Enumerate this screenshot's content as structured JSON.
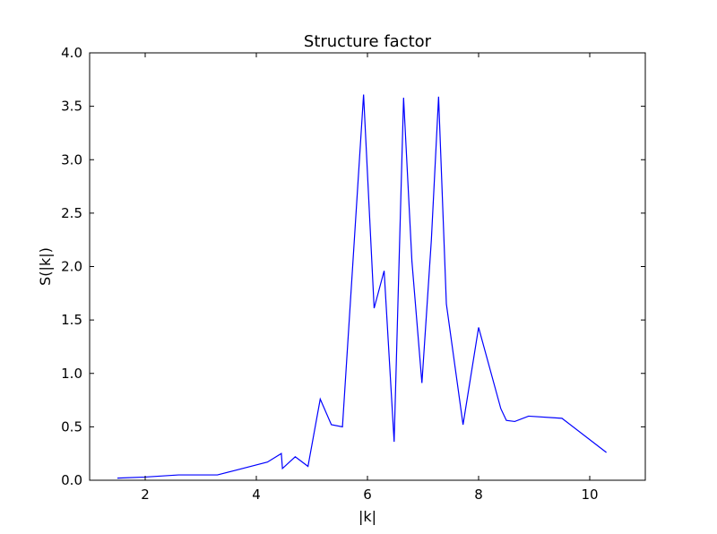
{
  "chart_data": {
    "type": "line",
    "title": "Structure factor",
    "xlabel": "|k|",
    "ylabel": "S(|k|)",
    "xlim": [
      1,
      11
    ],
    "ylim": [
      0.0,
      4.0
    ],
    "xticks": [
      2,
      4,
      6,
      8,
      10
    ],
    "xtick_labels": [
      "2",
      "4",
      "6",
      "8",
      "10"
    ],
    "yticks": [
      0.0,
      0.5,
      1.0,
      1.5,
      2.0,
      2.5,
      3.0,
      3.5,
      4.0
    ],
    "ytick_labels": [
      "0.0",
      "0.5",
      "1.0",
      "1.5",
      "2.0",
      "2.5",
      "3.0",
      "3.5",
      "4.0"
    ],
    "grid": false,
    "series": [
      {
        "color": "#0000ff",
        "x": [
          1.5,
          2.0,
          2.6,
          3.3,
          3.6,
          4.2,
          4.45,
          4.47,
          4.7,
          4.93,
          5.15,
          5.35,
          5.55,
          5.93,
          6.12,
          6.3,
          6.48,
          6.65,
          6.8,
          6.98,
          7.15,
          7.28,
          7.42,
          7.72,
          8.0,
          8.4,
          8.5,
          8.65,
          8.9,
          9.5,
          10.3
        ],
        "y": [
          0.02,
          0.03,
          0.05,
          0.05,
          0.09,
          0.17,
          0.25,
          0.11,
          0.22,
          0.13,
          0.76,
          0.52,
          0.5,
          3.61,
          1.61,
          1.96,
          0.36,
          3.58,
          2.05,
          0.91,
          2.25,
          3.59,
          1.65,
          0.52,
          1.43,
          0.67,
          0.56,
          0.55,
          0.6,
          0.58,
          0.26
        ]
      }
    ]
  }
}
